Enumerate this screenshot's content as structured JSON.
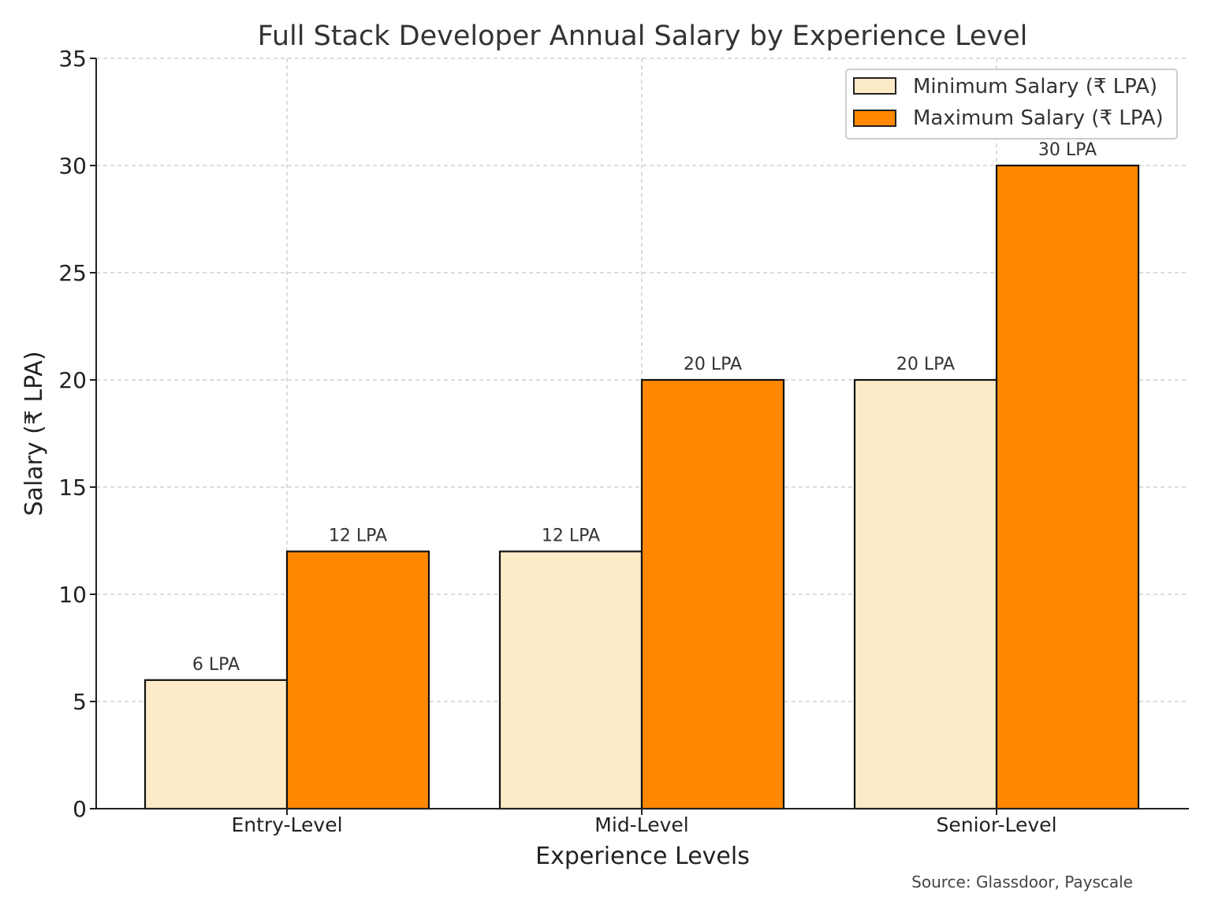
{
  "chart_data": {
    "type": "bar",
    "title": "Full Stack Developer Annual Salary by Experience Level",
    "xlabel": "Experience Levels",
    "ylabel": "Salary (₹ LPA)",
    "categories": [
      "Entry-Level",
      "Mid-Level",
      "Senior-Level"
    ],
    "series": [
      {
        "name": "Minimum Salary (₹ LPA)",
        "values": [
          6,
          12,
          20
        ],
        "labels": [
          "6 LPA",
          "12 LPA",
          "20 LPA"
        ],
        "color": "#fdebc8"
      },
      {
        "name": "Maximum Salary (₹ LPA)",
        "values": [
          12,
          20,
          30
        ],
        "labels": [
          "12 LPA",
          "20 LPA",
          "30 LPA"
        ],
        "color": "#ff8800"
      }
    ],
    "ylim": [
      0,
      35
    ],
    "yticks": [
      0,
      5,
      10,
      15,
      20,
      25,
      30,
      35
    ],
    "grid": true,
    "legend_position": "top-right",
    "source": "Source: Glassdoor, Payscale"
  }
}
